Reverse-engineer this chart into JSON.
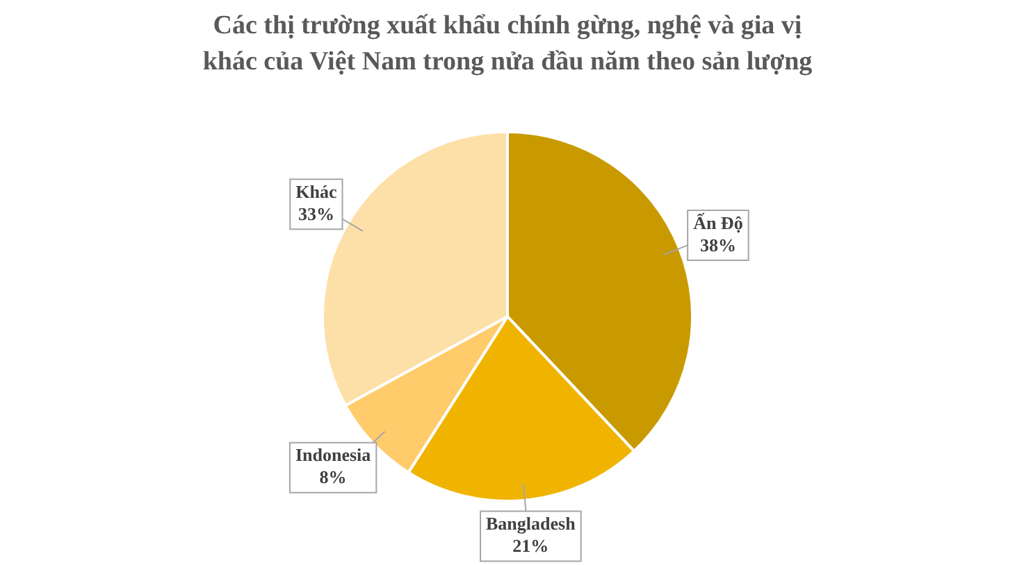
{
  "chart_data": {
    "type": "pie",
    "title": "Các thị trường xuất khẩu chính gừng, nghệ và gia vị khác của Việt Nam trong nửa đầu năm theo sản lượng",
    "categories": [
      "Ấn Độ",
      "Bangladesh",
      "Indonesia",
      "Khác"
    ],
    "values": [
      38,
      21,
      8,
      33
    ],
    "value_labels": [
      "38%",
      "21%",
      "8%",
      "33%"
    ],
    "colors": [
      "#c89a00",
      "#f0b400",
      "#ffcb6b",
      "#fddfa8"
    ],
    "legend": false
  }
}
